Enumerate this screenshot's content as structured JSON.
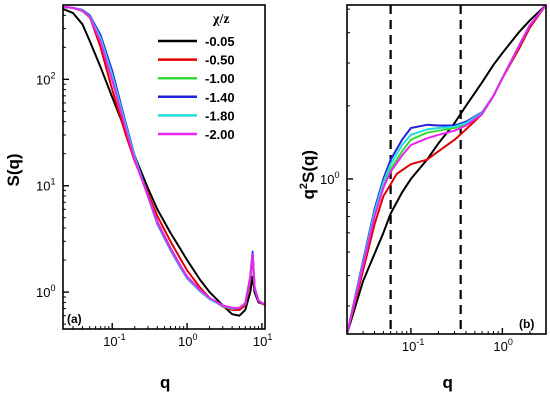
{
  "chart_data": [
    {
      "panel": "(a)",
      "type": "line",
      "xscale": "log",
      "yscale": "log",
      "xlabel": "q",
      "ylabel": "S(q)",
      "xlim": [
        0.022,
        11
      ],
      "ylim": [
        0.45,
        500
      ],
      "xticks": [
        {
          "value": 0.1,
          "base": "10",
          "exp": "-1"
        },
        {
          "value": 1,
          "base": "10",
          "exp": "0"
        },
        {
          "value": 10,
          "base": "10",
          "exp": "1"
        }
      ],
      "yticks": [
        {
          "value": 1,
          "base": "10",
          "exp": "0"
        },
        {
          "value": 10,
          "base": "10",
          "exp": "1"
        },
        {
          "value": 100,
          "base": "10",
          "exp": "2"
        }
      ],
      "legend": {
        "title": "χ/z",
        "placement": "top-right"
      },
      "series": [
        {
          "name": "-0.05",
          "color": "#000000",
          "points": [
            [
              0.022,
              460
            ],
            [
              0.03,
              420
            ],
            [
              0.04,
              330
            ],
            [
              0.05,
              230
            ],
            [
              0.07,
              130
            ],
            [
              0.1,
              68
            ],
            [
              0.15,
              33
            ],
            [
              0.2,
              19
            ],
            [
              0.3,
              9.5
            ],
            [
              0.4,
              6.0
            ],
            [
              0.6,
              3.6
            ],
            [
              0.8,
              2.6
            ],
            [
              1.0,
              2.0
            ],
            [
              1.5,
              1.3
            ],
            [
              2.0,
              1.0
            ],
            [
              3.0,
              0.75
            ],
            [
              4.0,
              0.62
            ],
            [
              5.0,
              0.6
            ],
            [
              6.0,
              0.68
            ],
            [
              7.0,
              1.0
            ],
            [
              7.5,
              1.4
            ],
            [
              8.0,
              1.0
            ],
            [
              9.0,
              0.8
            ],
            [
              10.0,
              0.78
            ],
            [
              11.0,
              0.76
            ]
          ]
        },
        {
          "name": "-0.50",
          "color": "#e00000",
          "points": [
            [
              0.022,
              480
            ],
            [
              0.03,
              470
            ],
            [
              0.04,
              440
            ],
            [
              0.05,
              390
            ],
            [
              0.07,
              200
            ],
            [
              0.1,
              80
            ],
            [
              0.15,
              31
            ],
            [
              0.2,
              17
            ],
            [
              0.3,
              8.5
            ],
            [
              0.4,
              5.2
            ],
            [
              0.6,
              3.0
            ],
            [
              0.8,
              2.1
            ],
            [
              1.0,
              1.6
            ],
            [
              1.5,
              1.1
            ],
            [
              2.0,
              0.88
            ],
            [
              3.0,
              0.73
            ],
            [
              4.0,
              0.68
            ],
            [
              5.0,
              0.68
            ],
            [
              6.0,
              0.75
            ],
            [
              7.0,
              1.3
            ],
            [
              7.5,
              2.2
            ],
            [
              8.0,
              1.1
            ],
            [
              9.0,
              0.82
            ],
            [
              10.0,
              0.78
            ],
            [
              11.0,
              0.76
            ]
          ]
        },
        {
          "name": "-1.00",
          "color": "#33dd33",
          "points": [
            [
              0.022,
              480
            ],
            [
              0.03,
              470
            ],
            [
              0.04,
              440
            ],
            [
              0.05,
              380
            ],
            [
              0.07,
              235
            ],
            [
              0.1,
              105
            ],
            [
              0.15,
              37
            ],
            [
              0.2,
              18
            ],
            [
              0.3,
              8.0
            ],
            [
              0.4,
              4.6
            ],
            [
              0.6,
              2.6
            ],
            [
              0.8,
              1.8
            ],
            [
              1.0,
              1.4
            ],
            [
              1.5,
              1.05
            ],
            [
              2.0,
              0.87
            ],
            [
              3.0,
              0.74
            ],
            [
              4.0,
              0.7
            ],
            [
              5.0,
              0.71
            ],
            [
              6.0,
              0.78
            ],
            [
              7.0,
              1.4
            ],
            [
              7.5,
              2.3
            ],
            [
              8.0,
              1.1
            ],
            [
              9.0,
              0.83
            ],
            [
              10.0,
              0.79
            ],
            [
              11.0,
              0.77
            ]
          ]
        },
        {
          "name": "-1.40",
          "color": "#2222dd",
          "points": [
            [
              0.022,
              480
            ],
            [
              0.03,
              470
            ],
            [
              0.04,
              450
            ],
            [
              0.05,
              400
            ],
            [
              0.07,
              260
            ],
            [
              0.1,
              120
            ],
            [
              0.15,
              40
            ],
            [
              0.2,
              19
            ],
            [
              0.3,
              8.0
            ],
            [
              0.4,
              4.4
            ],
            [
              0.6,
              2.5
            ],
            [
              0.8,
              1.75
            ],
            [
              1.0,
              1.35
            ],
            [
              1.5,
              1.02
            ],
            [
              2.0,
              0.86
            ],
            [
              3.0,
              0.74
            ],
            [
              4.0,
              0.7
            ],
            [
              5.0,
              0.71
            ],
            [
              6.0,
              0.78
            ],
            [
              7.0,
              1.4
            ],
            [
              7.5,
              2.4
            ],
            [
              8.0,
              1.1
            ],
            [
              9.0,
              0.83
            ],
            [
              10.0,
              0.79
            ],
            [
              11.0,
              0.77
            ]
          ]
        },
        {
          "name": "-1.80",
          "color": "#22dddd",
          "points": [
            [
              0.022,
              480
            ],
            [
              0.03,
              470
            ],
            [
              0.04,
              445
            ],
            [
              0.05,
              390
            ],
            [
              0.07,
              245
            ],
            [
              0.1,
              110
            ],
            [
              0.15,
              38
            ],
            [
              0.2,
              18.5
            ],
            [
              0.3,
              8.0
            ],
            [
              0.4,
              4.5
            ],
            [
              0.6,
              2.55
            ],
            [
              0.8,
              1.78
            ],
            [
              1.0,
              1.37
            ],
            [
              1.5,
              1.03
            ],
            [
              2.0,
              0.86
            ],
            [
              3.0,
              0.74
            ],
            [
              4.0,
              0.7
            ],
            [
              5.0,
              0.71
            ],
            [
              6.0,
              0.78
            ],
            [
              7.0,
              1.4
            ],
            [
              7.5,
              2.3
            ],
            [
              8.0,
              1.1
            ],
            [
              9.0,
              0.83
            ],
            [
              10.0,
              0.79
            ],
            [
              11.0,
              0.77
            ]
          ]
        },
        {
          "name": "-2.00",
          "color": "#ee22ee",
          "points": [
            [
              0.022,
              480
            ],
            [
              0.03,
              470
            ],
            [
              0.04,
              440
            ],
            [
              0.05,
              385
            ],
            [
              0.07,
              225
            ],
            [
              0.1,
              98
            ],
            [
              0.15,
              35
            ],
            [
              0.2,
              17.5
            ],
            [
              0.3,
              8.0
            ],
            [
              0.4,
              4.6
            ],
            [
              0.6,
              2.6
            ],
            [
              0.8,
              1.82
            ],
            [
              1.0,
              1.4
            ],
            [
              1.5,
              1.05
            ],
            [
              2.0,
              0.88
            ],
            [
              3.0,
              0.75
            ],
            [
              4.0,
              0.71
            ],
            [
              5.0,
              0.71
            ],
            [
              6.0,
              0.79
            ],
            [
              7.0,
              1.4
            ],
            [
              7.5,
              2.3
            ],
            [
              8.0,
              1.1
            ],
            [
              9.0,
              0.83
            ],
            [
              10.0,
              0.79
            ],
            [
              11.0,
              0.77
            ]
          ]
        }
      ]
    },
    {
      "panel": "(b)",
      "type": "line",
      "xscale": "log",
      "yscale": "log",
      "xlabel": "q",
      "ylabel": "q²S(q)",
      "ylabel_parts": {
        "prefix": "q",
        "sup": "2",
        "suffix": "S(q)"
      },
      "xlim": [
        0.02,
        3.0
      ],
      "ylim": [
        0.23,
        5.2
      ],
      "xticks": [
        {
          "value": 0.1,
          "base": "10",
          "exp": "-1"
        },
        {
          "value": 1,
          "base": "10",
          "exp": "0"
        }
      ],
      "yticks": [
        {
          "value": 1,
          "base": "10",
          "exp": "0"
        }
      ],
      "vlines": [
        0.06,
        0.35
      ],
      "series": [
        {
          "name": "-0.05",
          "color": "#000000",
          "points": [
            [
              0.02,
              0.23
            ],
            [
              0.03,
              0.38
            ],
            [
              0.05,
              0.6
            ],
            [
              0.06,
              0.72
            ],
            [
              0.08,
              0.88
            ],
            [
              0.1,
              1.0
            ],
            [
              0.15,
              1.2
            ],
            [
              0.2,
              1.4
            ],
            [
              0.3,
              1.7
            ],
            [
              0.4,
              2.0
            ],
            [
              0.6,
              2.5
            ],
            [
              0.8,
              2.95
            ],
            [
              1.0,
              3.3
            ],
            [
              1.5,
              4.0
            ],
            [
              2.0,
              4.5
            ],
            [
              3.0,
              5.2
            ]
          ]
        },
        {
          "name": "-0.50",
          "color": "#e00000",
          "points": [
            [
              0.02,
              0.23
            ],
            [
              0.03,
              0.42
            ],
            [
              0.04,
              0.65
            ],
            [
              0.05,
              0.85
            ],
            [
              0.06,
              0.95
            ],
            [
              0.07,
              1.05
            ],
            [
              0.1,
              1.15
            ],
            [
              0.15,
              1.2
            ],
            [
              0.2,
              1.3
            ],
            [
              0.3,
              1.45
            ],
            [
              0.4,
              1.6
            ],
            [
              0.6,
              1.85
            ],
            [
              0.8,
              2.2
            ],
            [
              1.0,
              2.6
            ],
            [
              1.5,
              3.4
            ],
            [
              2.0,
              4.2
            ],
            [
              3.0,
              5.2
            ]
          ]
        },
        {
          "name": "-1.00",
          "color": "#33dd33",
          "points": [
            [
              0.02,
              0.23
            ],
            [
              0.03,
              0.45
            ],
            [
              0.04,
              0.72
            ],
            [
              0.05,
              0.95
            ],
            [
              0.06,
              1.1
            ],
            [
              0.08,
              1.3
            ],
            [
              0.1,
              1.45
            ],
            [
              0.15,
              1.55
            ],
            [
              0.2,
              1.58
            ],
            [
              0.3,
              1.62
            ],
            [
              0.4,
              1.68
            ],
            [
              0.6,
              1.85
            ],
            [
              0.8,
              2.2
            ],
            [
              1.0,
              2.6
            ],
            [
              1.5,
              3.5
            ],
            [
              2.0,
              4.3
            ],
            [
              3.0,
              5.2
            ]
          ]
        },
        {
          "name": "-1.40",
          "color": "#2222dd",
          "points": [
            [
              0.02,
              0.23
            ],
            [
              0.03,
              0.46
            ],
            [
              0.04,
              0.75
            ],
            [
              0.05,
              1.0
            ],
            [
              0.06,
              1.2
            ],
            [
              0.08,
              1.45
            ],
            [
              0.1,
              1.62
            ],
            [
              0.15,
              1.67
            ],
            [
              0.2,
              1.66
            ],
            [
              0.3,
              1.66
            ],
            [
              0.4,
              1.72
            ],
            [
              0.6,
              1.88
            ],
            [
              0.8,
              2.2
            ],
            [
              1.0,
              2.6
            ],
            [
              1.5,
              3.5
            ],
            [
              2.0,
              4.3
            ],
            [
              3.0,
              5.2
            ]
          ]
        },
        {
          "name": "-1.80",
          "color": "#22dddd",
          "points": [
            [
              0.02,
              0.23
            ],
            [
              0.03,
              0.45
            ],
            [
              0.04,
              0.73
            ],
            [
              0.05,
              0.97
            ],
            [
              0.06,
              1.15
            ],
            [
              0.08,
              1.38
            ],
            [
              0.1,
              1.52
            ],
            [
              0.15,
              1.6
            ],
            [
              0.2,
              1.62
            ],
            [
              0.3,
              1.64
            ],
            [
              0.4,
              1.7
            ],
            [
              0.6,
              1.87
            ],
            [
              0.8,
              2.2
            ],
            [
              1.0,
              2.6
            ],
            [
              1.5,
              3.5
            ],
            [
              2.0,
              4.3
            ],
            [
              3.0,
              5.2
            ]
          ]
        },
        {
          "name": "-2.00",
          "color": "#ee22ee",
          "points": [
            [
              0.02,
              0.23
            ],
            [
              0.03,
              0.44
            ],
            [
              0.04,
              0.7
            ],
            [
              0.05,
              0.92
            ],
            [
              0.06,
              1.07
            ],
            [
              0.08,
              1.25
            ],
            [
              0.1,
              1.38
            ],
            [
              0.15,
              1.47
            ],
            [
              0.2,
              1.52
            ],
            [
              0.3,
              1.58
            ],
            [
              0.4,
              1.66
            ],
            [
              0.6,
              1.85
            ],
            [
              0.8,
              2.2
            ],
            [
              1.0,
              2.6
            ],
            [
              1.5,
              3.5
            ],
            [
              2.0,
              4.3
            ],
            [
              3.0,
              5.2
            ]
          ]
        }
      ]
    }
  ]
}
